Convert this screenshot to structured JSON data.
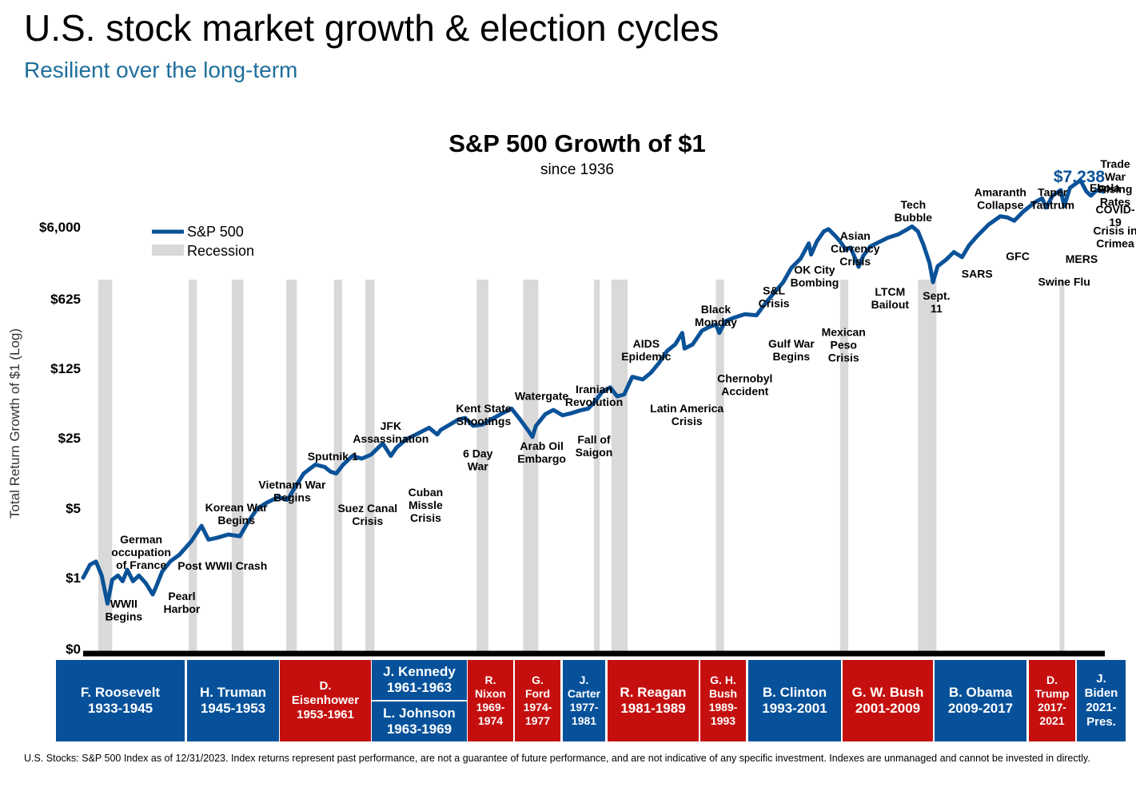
{
  "page": {
    "title": "U.S. stock market growth & election cycles",
    "subtitle": "Resilient over the long-term",
    "footnote": "U.S. Stocks: S&P 500 Index as of 12/31/2023. Index returns represent past performance, are not a guarantee of future performance, and are not indicative of any specific investment. Indexes are unmanaged and cannot be invested in directly."
  },
  "colors": {
    "line": "#0a5298",
    "recession": "#d9d9d9",
    "democrat": "#06519a",
    "republican": "#c50f0f",
    "final_label": "#0a5298",
    "subtitle": "#1f6e9c"
  },
  "chart_data": {
    "type": "line",
    "title": "S&P 500 Growth of $1",
    "subtitle": "since 1936",
    "ylabel": "Total Return Growth of $1 (Log)",
    "y_scale": "log",
    "y_ticks": [
      "$6,000",
      "$625",
      "$125",
      "$25",
      "$5",
      "$1",
      "$0"
    ],
    "xlim": [
      1936,
      2024
    ],
    "legend": {
      "position": "top-left",
      "items": [
        "S&P 500",
        "Recession"
      ]
    },
    "final_value_label": "$7,238",
    "series": [
      {
        "name": "S&P 500",
        "x": [
          1936.0,
          1936.6,
          1937.1,
          1937.6,
          1938.1,
          1938.5,
          1939.0,
          1939.4,
          1939.8,
          1940.3,
          1940.8,
          1941.4,
          1942.0,
          1942.3,
          1942.8,
          1943.5,
          1944.3,
          1945.3,
          1946.2,
          1946.8,
          1947.5,
          1948.5,
          1949.5,
          1950.2,
          1951.0,
          1951.8,
          1952.8,
          1953.6,
          1954.2,
          1955.0,
          1956.0,
          1956.8,
          1957.3,
          1957.8,
          1958.4,
          1959.2,
          1960.0,
          1960.8,
          1961.8,
          1962.5,
          1963.0,
          1963.8,
          1964.8,
          1965.8,
          1966.5,
          1966.8,
          1967.6,
          1968.3,
          1968.9,
          1969.6,
          1970.4,
          1971.2,
          1972.1,
          1972.9,
          1973.5,
          1974.3,
          1974.7,
          1975.0,
          1975.8,
          1976.5,
          1977.3,
          1978.0,
          1978.8,
          1979.5,
          1980.1,
          1980.7,
          1981.4,
          1982.0,
          1982.6,
          1983.3,
          1984.2,
          1984.9,
          1985.6,
          1986.3,
          1987.0,
          1987.6,
          1987.8,
          1988.5,
          1989.3,
          1989.9,
          1990.5,
          1990.8,
          1991.3,
          1992.0,
          1993.0,
          1994.0,
          1994.8,
          1995.5,
          1996.3,
          1997.0,
          1997.8,
          1998.5,
          1998.7,
          1999.2,
          1999.8,
          2000.2,
          2000.8,
          2001.2,
          2001.7,
          2002.1,
          2002.5,
          2002.8,
          2003.2,
          2003.8,
          2004.5,
          2005.3,
          2006.2,
          2006.9,
          2007.4,
          2007.9,
          2008.4,
          2008.9,
          2009.2,
          2009.6,
          2010.3,
          2011.0,
          2011.7,
          2012.3,
          2013.0,
          2014.0,
          2015.0,
          2015.6,
          2016.2,
          2017.0,
          2018.0,
          2018.6,
          2018.95,
          2019.5,
          2019.9,
          2020.2,
          2020.5,
          2021.0,
          2021.9,
          2022.4,
          2022.8,
          2023.3,
          2023.9
        ],
        "values": [
          1.0,
          1.35,
          1.45,
          1.05,
          0.55,
          0.95,
          1.05,
          0.92,
          1.2,
          0.92,
          1.05,
          0.88,
          0.68,
          0.82,
          1.15,
          1.45,
          1.7,
          2.3,
          3.3,
          2.4,
          2.5,
          2.7,
          2.6,
          3.6,
          4.9,
          5.6,
          6.4,
          6.0,
          7.8,
          11.0,
          13.5,
          12.8,
          11.5,
          11.0,
          13.5,
          16.5,
          15.5,
          17.0,
          22.0,
          16.5,
          20.0,
          24.0,
          27.5,
          31.5,
          27.0,
          30.0,
          34.0,
          38.0,
          39.5,
          33.0,
          34.0,
          38.5,
          44.0,
          49.0,
          40.0,
          30.0,
          25.5,
          33.0,
          43.0,
          47.5,
          42.0,
          44.0,
          47.0,
          49.0,
          58.0,
          72.0,
          80.0,
          65.0,
          68.0,
          102.0,
          96.0,
          112.0,
          140.0,
          185.0,
          215.0,
          280.0,
          195.0,
          215.0,
          295.0,
          320.0,
          340.0,
          280.0,
          365.0,
          395.0,
          430.0,
          420.0,
          560.0,
          700.0,
          900.0,
          1250.0,
          1550.0,
          2200.0,
          1700.0,
          2300.0,
          2900.0,
          3050.0,
          2600.0,
          2300.0,
          1900.0,
          2000.0,
          1550.0,
          1280.0,
          1650.0,
          2050.0,
          2250.0,
          2500.0,
          2700.0,
          3000.0,
          3250.0,
          2900.0,
          2100.0,
          1400.0,
          900.0,
          1300.0,
          1500.0,
          1800.0,
          1600.0,
          2100.0,
          2600.0,
          3400.0,
          4100.0,
          4000.0,
          3700.0,
          4600.0,
          5700.0,
          6200.0,
          5000.0,
          6600.0,
          7100.0,
          7500.0,
          5200.0,
          7900.0,
          9400.0,
          7300.0,
          6600.0,
          7500.0,
          7238.0
        ]
      }
    ],
    "recessions": [
      [
        1937.3,
        1938.5
      ],
      [
        1945.1,
        1945.8
      ],
      [
        1948.8,
        1949.8
      ],
      [
        1953.5,
        1954.4
      ],
      [
        1957.6,
        1958.3
      ],
      [
        1960.3,
        1961.1
      ],
      [
        1969.9,
        1970.9
      ],
      [
        1973.9,
        1975.2
      ],
      [
        1980.0,
        1980.5
      ],
      [
        1981.5,
        1982.9
      ],
      [
        1990.5,
        1991.2
      ],
      [
        2001.2,
        2001.9
      ],
      [
        2007.9,
        2009.5
      ],
      [
        2020.1,
        2020.4
      ]
    ],
    "annotations": [
      {
        "text": "WWII\nBegins",
        "x": 1939.5,
        "y": 0.5
      },
      {
        "text": "German\noccupation\nof France",
        "x": 1941.0,
        "y": 2.2
      },
      {
        "text": "Pearl\nHarbor",
        "x": 1944.5,
        "y": 0.6
      },
      {
        "text": "Post WWII Crash",
        "x": 1948.0,
        "y": 1.2
      },
      {
        "text": "Korean War\nBegins",
        "x": 1949.2,
        "y": 4.6
      },
      {
        "text": "Vietnam War\nBegins",
        "x": 1954.0,
        "y": 7.8
      },
      {
        "text": "Sputnik 1",
        "x": 1957.5,
        "y": 15.0
      },
      {
        "text": "Suez Canal\nCrisis",
        "x": 1960.5,
        "y": 4.5
      },
      {
        "text": "JFK\nAssassination",
        "x": 1962.5,
        "y": 30.0
      },
      {
        "text": "Cuban\nMissle\nCrisis",
        "x": 1965.5,
        "y": 6.5
      },
      {
        "text": "Kent State\nShootings",
        "x": 1970.5,
        "y": 45.0
      },
      {
        "text": "6 Day\nWar",
        "x": 1970.0,
        "y": 16.0
      },
      {
        "text": "Watergate",
        "x": 1975.5,
        "y": 60.0
      },
      {
        "text": "Arab Oil\nEmbargo",
        "x": 1975.5,
        "y": 19.0
      },
      {
        "text": "Iranian\nRevolution",
        "x": 1980.0,
        "y": 70.0
      },
      {
        "text": "Fall of\nSaigon",
        "x": 1980.0,
        "y": 22.0
      },
      {
        "text": "AIDS\nEpidemic",
        "x": 1984.5,
        "y": 200.0
      },
      {
        "text": "Latin America\nCrisis",
        "x": 1988.0,
        "y": 45.0
      },
      {
        "text": "Black\nMonday",
        "x": 1990.5,
        "y": 440.0
      },
      {
        "text": "Chernobyl\nAccident",
        "x": 1993.0,
        "y": 90.0
      },
      {
        "text": "S&L\nCrisis",
        "x": 1995.5,
        "y": 680.0
      },
      {
        "text": "Gulf War\nBegins",
        "x": 1997.0,
        "y": 200.0
      },
      {
        "text": "OK City\nBombing",
        "x": 1999.0,
        "y": 1100.0
      },
      {
        "text": "Mexican\nPeso\nCrisis",
        "x": 2001.5,
        "y": 260.0
      },
      {
        "text": "Asian\nCurrency\nCrisis",
        "x": 2002.5,
        "y": 2400.0
      },
      {
        "text": "LTCM\nBailout",
        "x": 2005.5,
        "y": 660.0
      },
      {
        "text": "Tech\nBubble",
        "x": 2007.5,
        "y": 4900.0
      },
      {
        "text": "Sept.\n11",
        "x": 2009.5,
        "y": 600.0
      },
      {
        "text": "SARS",
        "x": 2013.0,
        "y": 1000.0
      },
      {
        "text": "Amaranth\nCollapse",
        "x": 2015.0,
        "y": 6500.0
      },
      {
        "text": "GFC",
        "x": 2016.5,
        "y": 1500.0
      },
      {
        "text": "Taper\nTantrum",
        "x": 2019.5,
        "y": 6500.0
      },
      {
        "text": "Swine Flu",
        "x": 2020.5,
        "y": 830.0
      },
      {
        "text": "MERS",
        "x": 2022.0,
        "y": 1400.0
      },
      {
        "text": "Ebola",
        "x": 2024.0,
        "y": 7200.0
      },
      {
        "text": "Crisis in\nCrimea",
        "x": 2025.0,
        "y": 2700.0
      },
      {
        "text": "Trade\nWar",
        "x": 2028.0,
        "y": 12500.0
      },
      {
        "text": "COVID-\n19",
        "x": 2030.5,
        "y": 4400.0
      },
      {
        "text": "Rising\nRates",
        "x": 2033.5,
        "y": 7000.0
      }
    ]
  },
  "presidents": [
    {
      "name": "F. Roosevelt\n1933-1945",
      "party": "D"
    },
    {
      "name": "H. Truman\n1945-1953",
      "party": "D"
    },
    {
      "name": "D.\nEisenhower\n1953-1961",
      "party": "R"
    },
    {
      "name": "J. Kennedy\n1961-1963",
      "party": "D"
    },
    {
      "name": "L. Johnson\n1963-1969",
      "party": "D"
    },
    {
      "name": "R.\nNixon\n1969-\n1974",
      "party": "R"
    },
    {
      "name": "G.\nFord\n1974-\n1977",
      "party": "R"
    },
    {
      "name": "J.\nCarter\n1977-\n1981",
      "party": "D"
    },
    {
      "name": "R. Reagan\n1981-1989",
      "party": "R"
    },
    {
      "name": "G. H.\nBush\n1989-\n1993",
      "party": "R"
    },
    {
      "name": "B. Clinton\n1993-2001",
      "party": "D"
    },
    {
      "name": "G. W. Bush\n2001-2009",
      "party": "R"
    },
    {
      "name": "B. Obama\n2009-2017",
      "party": "D"
    },
    {
      "name": "D.\nTrump\n2017-\n2021",
      "party": "R"
    },
    {
      "name": "J. Biden\n2021-\nPres.",
      "party": "D"
    }
  ]
}
